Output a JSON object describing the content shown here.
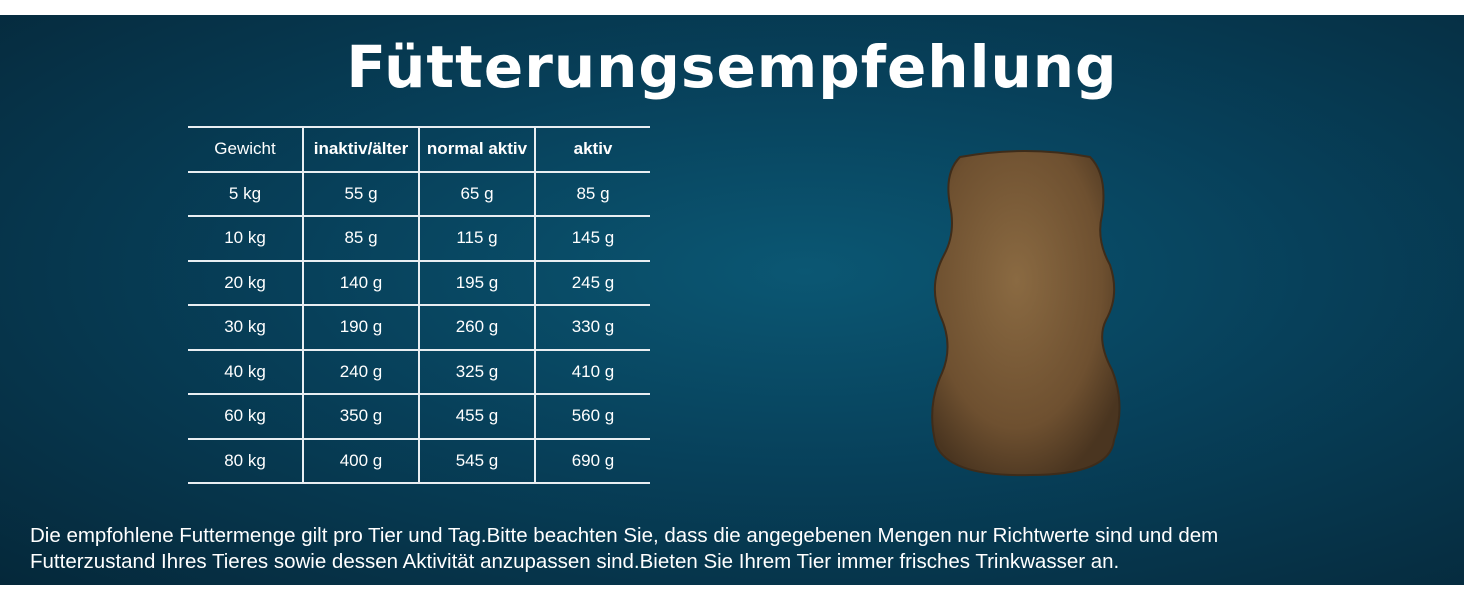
{
  "header": {
    "title": "Fütterungsempfehlung"
  },
  "table": {
    "header": [
      "Gewicht",
      "inaktiv/älter",
      "normal aktiv",
      "aktiv"
    ],
    "rows": [
      [
        "5 kg",
        "55 g",
        "65 g",
        "85 g"
      ],
      [
        "10 kg",
        "85 g",
        "115 g",
        "145 g"
      ],
      [
        "20 kg",
        "140 g",
        "195 g",
        "245 g"
      ],
      [
        "30 kg",
        "190 g",
        "260 g",
        "330 g"
      ],
      [
        "40 kg",
        "240 g",
        "325 g",
        "410 g"
      ],
      [
        "60 kg",
        "350 g",
        "455 g",
        "560 g"
      ],
      [
        "80 kg",
        "400 g",
        "545 g",
        "690 g"
      ]
    ]
  },
  "footer": {
    "text": "Die empfohlene Futtermenge gilt pro Tier und Tag.Bitte beachten Sie, dass die angegebenen Mengen nur Richtwerte sind und dem Futterzustand Ihres Tieres sowie dessen Aktivität anzupassen sind.Bieten Sie Ihrem Tier immer frisches Trinkwasser an."
  }
}
